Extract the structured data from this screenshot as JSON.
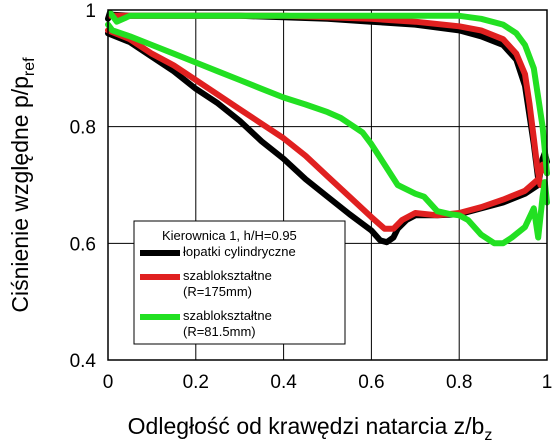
{
  "chart_data": {
    "type": "line",
    "xlabel_main": "Odległość od krawędzi natarcia z/b",
    "xlabel_sub": "z",
    "ylabel_main": "Ciśnienie względne p/p",
    "ylabel_sub": "ref",
    "xlim": [
      0,
      1
    ],
    "ylim": [
      0.4,
      1
    ],
    "xticks": [
      0,
      0.2,
      0.4,
      0.6,
      0.8,
      1
    ],
    "xtick_labels": [
      "0",
      "0.2",
      "0.4",
      "0.6",
      "0.8",
      "1"
    ],
    "yticks": [
      0.4,
      0.6,
      0.8,
      1
    ],
    "ytick_labels": [
      "0.4",
      "0.6",
      "0.8",
      "1"
    ],
    "grid": true,
    "legend_title": "Kierownica 1, h/H=0.95",
    "legend_position": "lower-left",
    "series": [
      {
        "name": "łopatki cylindryczne",
        "name_lines": [
          "łopatki cylindryczne"
        ],
        "color": "#000000",
        "curves": [
          [
            [
              0.0,
              0.985
            ],
            [
              0.004,
              0.995
            ],
            [
              0.01,
              0.992
            ],
            [
              0.05,
              0.99
            ],
            [
              0.1,
              0.99
            ],
            [
              0.3,
              0.99
            ],
            [
              0.5,
              0.985
            ],
            [
              0.6,
              0.98
            ],
            [
              0.7,
              0.975
            ],
            [
              0.8,
              0.965
            ],
            [
              0.85,
              0.955
            ],
            [
              0.9,
              0.94
            ],
            [
              0.93,
              0.915
            ],
            [
              0.95,
              0.87
            ],
            [
              0.96,
              0.82
            ],
            [
              0.97,
              0.77
            ],
            [
              0.975,
              0.74
            ],
            [
              0.98,
              0.71
            ]
          ],
          [
            [
              0.0,
              0.96
            ],
            [
              0.05,
              0.945
            ],
            [
              0.1,
              0.92
            ],
            [
              0.15,
              0.895
            ],
            [
              0.2,
              0.865
            ],
            [
              0.25,
              0.84
            ],
            [
              0.3,
              0.81
            ],
            [
              0.35,
              0.775
            ],
            [
              0.4,
              0.745
            ],
            [
              0.45,
              0.71
            ],
            [
              0.5,
              0.68
            ],
            [
              0.55,
              0.65
            ],
            [
              0.6,
              0.622
            ],
            [
              0.62,
              0.605
            ],
            [
              0.635,
              0.602
            ],
            [
              0.65,
              0.61
            ],
            [
              0.66,
              0.625
            ],
            [
              0.68,
              0.64
            ],
            [
              0.7,
              0.648
            ],
            [
              0.75,
              0.648
            ],
            [
              0.8,
              0.65
            ],
            [
              0.85,
              0.66
            ],
            [
              0.9,
              0.67
            ],
            [
              0.95,
              0.685
            ],
            [
              0.98,
              0.7
            ],
            [
              0.99,
              0.745
            ],
            [
              0.995,
              0.755
            ],
            [
              1.0,
              0.74
            ]
          ]
        ]
      },
      {
        "name": "szablokształtne (R=175mm)",
        "name_lines": [
          "szablokształtne",
          "(R=175mm)"
        ],
        "color": "#e02020",
        "curves": [
          [
            [
              0.005,
              0.99
            ],
            [
              0.05,
              0.99
            ],
            [
              0.2,
              0.99
            ],
            [
              0.4,
              0.99
            ],
            [
              0.6,
              0.985
            ],
            [
              0.7,
              0.98
            ],
            [
              0.8,
              0.972
            ],
            [
              0.85,
              0.965
            ],
            [
              0.9,
              0.95
            ],
            [
              0.93,
              0.925
            ],
            [
              0.95,
              0.89
            ],
            [
              0.96,
              0.84
            ],
            [
              0.97,
              0.78
            ],
            [
              0.978,
              0.73
            ],
            [
              0.985,
              0.7
            ]
          ],
          [
            [
              0.0,
              0.965
            ],
            [
              0.05,
              0.95
            ],
            [
              0.1,
              0.925
            ],
            [
              0.15,
              0.905
            ],
            [
              0.2,
              0.88
            ],
            [
              0.25,
              0.855
            ],
            [
              0.3,
              0.83
            ],
            [
              0.35,
              0.805
            ],
            [
              0.4,
              0.78
            ],
            [
              0.45,
              0.75
            ],
            [
              0.5,
              0.715
            ],
            [
              0.55,
              0.68
            ],
            [
              0.6,
              0.645
            ],
            [
              0.63,
              0.625
            ],
            [
              0.65,
              0.625
            ],
            [
              0.67,
              0.64
            ],
            [
              0.7,
              0.652
            ],
            [
              0.75,
              0.648
            ],
            [
              0.8,
              0.652
            ],
            [
              0.85,
              0.662
            ],
            [
              0.9,
              0.675
            ],
            [
              0.95,
              0.69
            ],
            [
              0.98,
              0.71
            ],
            [
              0.99,
              0.735
            ],
            [
              1.0,
              0.72
            ]
          ]
        ]
      },
      {
        "name": "szablokształtne (R=81.5mm)",
        "name_lines": [
          "szablokształtne",
          "(R=81.5mm)"
        ],
        "color": "#22e022",
        "curves": [
          [
            [
              0.005,
              0.995
            ],
            [
              0.02,
              0.98
            ],
            [
              0.05,
              0.99
            ],
            [
              0.2,
              0.99
            ],
            [
              0.4,
              0.99
            ],
            [
              0.6,
              0.99
            ],
            [
              0.7,
              0.99
            ],
            [
              0.8,
              0.99
            ],
            [
              0.85,
              0.985
            ],
            [
              0.9,
              0.975
            ],
            [
              0.93,
              0.96
            ],
            [
              0.95,
              0.94
            ],
            [
              0.97,
              0.9
            ],
            [
              0.98,
              0.85
            ],
            [
              0.99,
              0.8
            ],
            [
              0.995,
              0.76
            ],
            [
              1.0,
              0.72
            ]
          ],
          [
            [
              0.0,
              0.975
            ],
            [
              0.01,
              0.965
            ],
            [
              0.05,
              0.955
            ],
            [
              0.1,
              0.94
            ],
            [
              0.15,
              0.925
            ],
            [
              0.2,
              0.91
            ],
            [
              0.25,
              0.895
            ],
            [
              0.3,
              0.88
            ],
            [
              0.35,
              0.865
            ],
            [
              0.4,
              0.85
            ],
            [
              0.45,
              0.838
            ],
            [
              0.5,
              0.825
            ],
            [
              0.53,
              0.815
            ],
            [
              0.55,
              0.805
            ],
            [
              0.58,
              0.79
            ],
            [
              0.6,
              0.77
            ],
            [
              0.63,
              0.735
            ],
            [
              0.66,
              0.7
            ],
            [
              0.7,
              0.685
            ],
            [
              0.72,
              0.68
            ],
            [
              0.75,
              0.655
            ],
            [
              0.78,
              0.65
            ],
            [
              0.8,
              0.648
            ],
            [
              0.82,
              0.64
            ],
            [
              0.85,
              0.615
            ],
            [
              0.88,
              0.6
            ],
            [
              0.9,
              0.6
            ],
            [
              0.92,
              0.61
            ],
            [
              0.95,
              0.628
            ],
            [
              0.97,
              0.66
            ],
            [
              0.98,
              0.61
            ],
            [
              0.99,
              0.68
            ],
            [
              0.995,
              0.705
            ],
            [
              1.0,
              0.67
            ]
          ]
        ]
      }
    ]
  }
}
